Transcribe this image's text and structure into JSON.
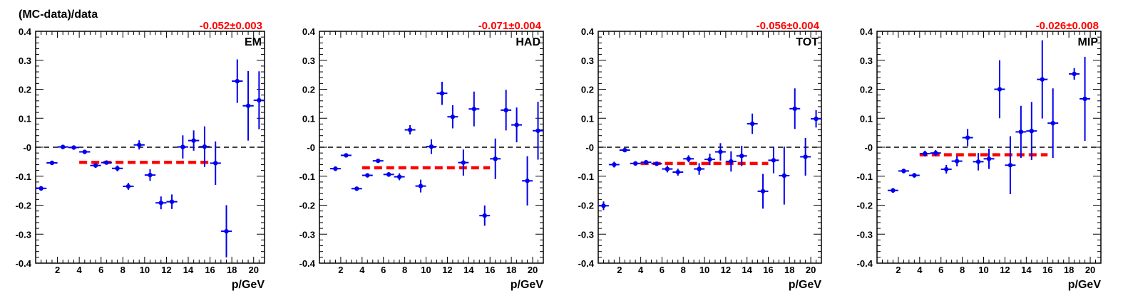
{
  "ytitle": "(MC-data)/data",
  "xtitle": "p/GeV",
  "colors": {
    "points": "#0000ee",
    "fit": "#ff0000",
    "zero": "#000000"
  },
  "chart_data": [
    {
      "type": "scatter",
      "tag": "EM",
      "fit_label": "-0.052±0.003",
      "fit_value": -0.052,
      "fit_range": [
        4,
        16
      ],
      "xlim": [
        0,
        21
      ],
      "ylim": [
        -0.4,
        0.4
      ],
      "yticks": [
        "-0.4",
        "-0.3",
        "-0.2",
        "-0.1",
        "-0",
        "0.1",
        "0.2",
        "0.3",
        "0.4"
      ],
      "xticks": [
        "2",
        "4",
        "6",
        "8",
        "10",
        "12",
        "14",
        "16",
        "18",
        "20"
      ],
      "points": [
        {
          "x": 0.5,
          "y": -0.142,
          "err": 0.008
        },
        {
          "x": 1.5,
          "y": -0.054,
          "err": 0.006
        },
        {
          "x": 2.5,
          "y": 0.001,
          "err": 0.004
        },
        {
          "x": 3.5,
          "y": -0.001,
          "err": 0.004
        },
        {
          "x": 4.5,
          "y": -0.016,
          "err": 0.006
        },
        {
          "x": 5.5,
          "y": -0.063,
          "err": 0.008
        },
        {
          "x": 6.5,
          "y": -0.053,
          "err": 0.006
        },
        {
          "x": 7.5,
          "y": -0.073,
          "err": 0.01
        },
        {
          "x": 8.5,
          "y": -0.135,
          "err": 0.012
        },
        {
          "x": 9.5,
          "y": 0.008,
          "err": 0.016
        },
        {
          "x": 10.5,
          "y": -0.096,
          "err": 0.02
        },
        {
          "x": 11.5,
          "y": -0.192,
          "err": 0.022
        },
        {
          "x": 12.5,
          "y": -0.188,
          "err": 0.025
        },
        {
          "x": 13.5,
          "y": 0.001,
          "err": 0.04
        },
        {
          "x": 14.5,
          "y": 0.023,
          "err": 0.035
        },
        {
          "x": 15.5,
          "y": 0.002,
          "err": 0.07
        },
        {
          "x": 16.5,
          "y": -0.055,
          "err": 0.075
        },
        {
          "x": 17.5,
          "y": -0.29,
          "err": 0.09
        },
        {
          "x": 18.5,
          "y": 0.228,
          "err": 0.075
        },
        {
          "x": 19.5,
          "y": 0.143,
          "err": 0.12
        },
        {
          "x": 20.5,
          "y": 0.162,
          "err": 0.1
        }
      ]
    },
    {
      "type": "scatter",
      "tag": "HAD",
      "fit_label": "-0.071±0.004",
      "fit_value": -0.071,
      "fit_range": [
        4,
        16
      ],
      "xlim": [
        0,
        21
      ],
      "ylim": [
        -0.4,
        0.4
      ],
      "yticks": [
        "-0.4",
        "-0.3",
        "-0.2",
        "-0.1",
        "-0",
        "0.1",
        "0.2",
        "0.3",
        "0.4"
      ],
      "xticks": [
        "2",
        "4",
        "6",
        "8",
        "10",
        "12",
        "14",
        "16",
        "18",
        "20"
      ],
      "points": [
        {
          "x": 1.5,
          "y": -0.074,
          "err": 0.008
        },
        {
          "x": 2.5,
          "y": -0.028,
          "err": 0.006
        },
        {
          "x": 3.5,
          "y": -0.143,
          "err": 0.006
        },
        {
          "x": 4.5,
          "y": -0.097,
          "err": 0.006
        },
        {
          "x": 5.5,
          "y": -0.047,
          "err": 0.006
        },
        {
          "x": 6.5,
          "y": -0.094,
          "err": 0.008
        },
        {
          "x": 7.5,
          "y": -0.102,
          "err": 0.012
        },
        {
          "x": 8.5,
          "y": 0.06,
          "err": 0.016
        },
        {
          "x": 9.5,
          "y": -0.134,
          "err": 0.022
        },
        {
          "x": 10.5,
          "y": 0.002,
          "err": 0.025
        },
        {
          "x": 11.5,
          "y": 0.186,
          "err": 0.04
        },
        {
          "x": 12.5,
          "y": 0.105,
          "err": 0.04
        },
        {
          "x": 13.5,
          "y": -0.053,
          "err": 0.045
        },
        {
          "x": 14.5,
          "y": 0.132,
          "err": 0.06
        },
        {
          "x": 15.5,
          "y": -0.236,
          "err": 0.035
        },
        {
          "x": 16.5,
          "y": -0.04,
          "err": 0.07
        },
        {
          "x": 17.5,
          "y": 0.128,
          "err": 0.07
        },
        {
          "x": 18.5,
          "y": 0.077,
          "err": 0.06
        },
        {
          "x": 19.5,
          "y": -0.116,
          "err": 0.085
        },
        {
          "x": 20.5,
          "y": 0.057,
          "err": 0.1
        }
      ]
    },
    {
      "type": "scatter",
      "tag": "TOT",
      "fit_label": "-0.056±0.004",
      "fit_value": -0.056,
      "fit_range": [
        4,
        16
      ],
      "xlim": [
        0,
        21
      ],
      "ylim": [
        -0.4,
        0.4
      ],
      "yticks": [
        "-0.4",
        "-0.3",
        "-0.2",
        "-0.1",
        "-0",
        "0.1",
        "0.2",
        "0.3",
        "0.4"
      ],
      "xticks": [
        "2",
        "4",
        "6",
        "8",
        "10",
        "12",
        "14",
        "16",
        "18",
        "20"
      ],
      "points": [
        {
          "x": 0.5,
          "y": -0.202,
          "err": 0.015
        },
        {
          "x": 1.5,
          "y": -0.06,
          "err": 0.01
        },
        {
          "x": 2.5,
          "y": -0.01,
          "err": 0.006
        },
        {
          "x": 3.5,
          "y": -0.056,
          "err": 0.006
        },
        {
          "x": 4.5,
          "y": -0.052,
          "err": 0.006
        },
        {
          "x": 5.5,
          "y": -0.057,
          "err": 0.006
        },
        {
          "x": 6.5,
          "y": -0.075,
          "err": 0.012
        },
        {
          "x": 7.5,
          "y": -0.086,
          "err": 0.012
        },
        {
          "x": 8.5,
          "y": -0.04,
          "err": 0.012
        },
        {
          "x": 9.5,
          "y": -0.075,
          "err": 0.02
        },
        {
          "x": 10.5,
          "y": -0.042,
          "err": 0.02
        },
        {
          "x": 11.5,
          "y": -0.016,
          "err": 0.03
        },
        {
          "x": 12.5,
          "y": -0.049,
          "err": 0.035
        },
        {
          "x": 13.5,
          "y": -0.03,
          "err": 0.035
        },
        {
          "x": 14.5,
          "y": 0.081,
          "err": 0.035
        },
        {
          "x": 15.5,
          "y": -0.152,
          "err": 0.06
        },
        {
          "x": 16.5,
          "y": -0.045,
          "err": 0.045
        },
        {
          "x": 17.5,
          "y": -0.098,
          "err": 0.1
        },
        {
          "x": 18.5,
          "y": 0.133,
          "err": 0.07
        },
        {
          "x": 19.5,
          "y": -0.033,
          "err": 0.065
        },
        {
          "x": 20.5,
          "y": 0.098,
          "err": 0.03
        }
      ]
    },
    {
      "type": "scatter",
      "tag": "MIP",
      "fit_label": "-0.026±0.008",
      "fit_value": -0.026,
      "fit_range": [
        4,
        16
      ],
      "xlim": [
        0,
        21
      ],
      "ylim": [
        -0.4,
        0.4
      ],
      "yticks": [
        "-0.4",
        "-0.3",
        "-0.2",
        "-0.1",
        "-0",
        "0.1",
        "0.2",
        "0.3",
        "0.4"
      ],
      "xticks": [
        "2",
        "4",
        "6",
        "8",
        "10",
        "12",
        "14",
        "16",
        "18",
        "20"
      ],
      "points": [
        {
          "x": 1.5,
          "y": -0.149,
          "err": 0.008
        },
        {
          "x": 2.5,
          "y": -0.082,
          "err": 0.008
        },
        {
          "x": 3.5,
          "y": -0.097,
          "err": 0.008
        },
        {
          "x": 4.5,
          "y": -0.022,
          "err": 0.01
        },
        {
          "x": 5.5,
          "y": -0.02,
          "err": 0.01
        },
        {
          "x": 6.5,
          "y": -0.076,
          "err": 0.015
        },
        {
          "x": 7.5,
          "y": -0.048,
          "err": 0.018
        },
        {
          "x": 8.5,
          "y": 0.033,
          "err": 0.03
        },
        {
          "x": 9.5,
          "y": -0.05,
          "err": 0.03
        },
        {
          "x": 10.5,
          "y": -0.04,
          "err": 0.035
        },
        {
          "x": 11.5,
          "y": 0.2,
          "err": 0.1
        },
        {
          "x": 12.5,
          "y": -0.062,
          "err": 0.1
        },
        {
          "x": 13.5,
          "y": 0.053,
          "err": 0.09
        },
        {
          "x": 14.5,
          "y": 0.056,
          "err": 0.1
        },
        {
          "x": 15.5,
          "y": 0.234,
          "err": 0.135
        },
        {
          "x": 16.5,
          "y": 0.083,
          "err": 0.12
        },
        {
          "x": 18.5,
          "y": 0.253,
          "err": 0.02
        },
        {
          "x": 19.5,
          "y": 0.167,
          "err": 0.145
        }
      ]
    }
  ]
}
